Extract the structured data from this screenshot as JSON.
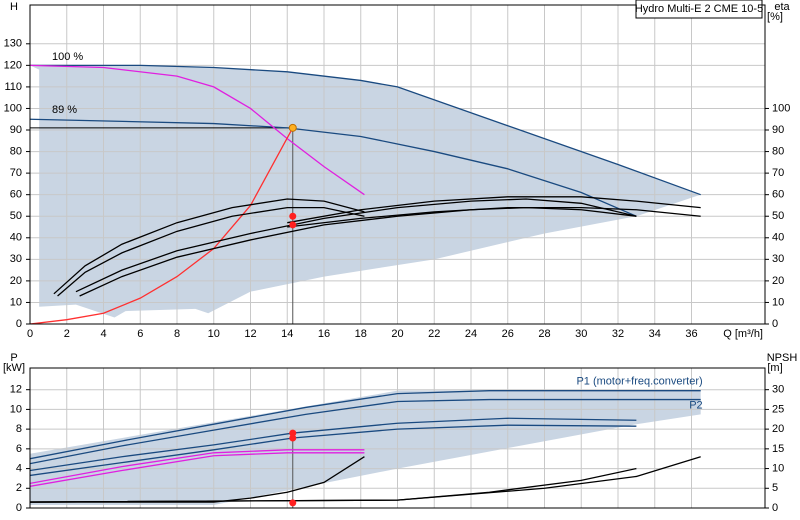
{
  "chart_data": [
    {
      "type": "line",
      "title": "Hydro Multi-E 2 CME 10-5",
      "ylabel": "H",
      "y2label": "eta",
      "y2unit": "[%]",
      "xlabel": "Q [m³/h]",
      "annotations": [
        "100 %",
        "89 %"
      ],
      "xlim": [
        0,
        40
      ],
      "ylim": [
        0,
        148
      ],
      "y2lim": [
        0,
        148
      ],
      "xticks": [
        0,
        2,
        4,
        6,
        8,
        10,
        12,
        14,
        16,
        18,
        20,
        22,
        24,
        26,
        28,
        30,
        32,
        34,
        36
      ],
      "yticks": [
        0,
        10,
        20,
        30,
        40,
        50,
        60,
        70,
        80,
        90,
        100,
        110,
        120,
        130
      ],
      "y2ticks": [
        0,
        10,
        20,
        30,
        40,
        50,
        60,
        70,
        80,
        90,
        100
      ],
      "xtick_labels": true,
      "grid": true,
      "operating_range": {
        "color": "#c9d5e3",
        "x": [
          0,
          6,
          10,
          14,
          18,
          20,
          26,
          32,
          36.5,
          33,
          28,
          22,
          16,
          12,
          9.7,
          9,
          5.2,
          4.6,
          2.5,
          0.5,
          0.5
        ],
        "values": [
          120,
          120,
          119,
          117,
          113,
          110,
          92,
          74,
          60,
          50,
          42,
          30,
          22,
          15,
          5,
          7,
          6,
          3,
          9,
          8,
          118
        ]
      },
      "duty_point": {
        "x": 14.3,
        "value": 91
      },
      "series": [
        {
          "color": "#1a4a80",
          "mark": "line",
          "x": [
            0,
            6,
            10,
            14,
            18,
            20,
            26,
            32,
            36.5
          ],
          "values": [
            120,
            120,
            119,
            117,
            113,
            110,
            92,
            74,
            60
          ]
        },
        {
          "color": "#1a4a80",
          "mark": "line",
          "x": [
            0,
            10,
            14,
            18,
            22,
            26,
            30,
            33
          ],
          "values": [
            95,
            93,
            91,
            87,
            80,
            72,
            61,
            50
          ]
        },
        {
          "color": "#e020e0",
          "mark": "line",
          "x": [
            0,
            4,
            8,
            10,
            12,
            14,
            16,
            18.2
          ],
          "values": [
            120,
            119,
            115,
            110,
            100,
            86,
            73,
            60
          ]
        },
        {
          "color": "#ff3030",
          "mark": "line",
          "x": [
            0,
            2,
            4,
            6,
            8,
            10,
            12,
            14.3
          ],
          "values": [
            0,
            2,
            5,
            12,
            22,
            35,
            55,
            91
          ]
        },
        {
          "color": "#000000",
          "mark": "line",
          "axis": "y2",
          "x": [
            1.3,
            3,
            5,
            8,
            11,
            14,
            16,
            18.2
          ],
          "values": [
            14,
            27,
            37,
            47,
            54,
            58,
            57,
            52
          ]
        },
        {
          "color": "#000000",
          "mark": "line",
          "axis": "y2",
          "x": [
            1.5,
            3,
            5,
            8,
            11,
            14,
            16,
            18.2
          ],
          "values": [
            13,
            24,
            33,
            43,
            50,
            54,
            54,
            50
          ]
        },
        {
          "color": "#000000",
          "mark": "line",
          "axis": "y2",
          "x": [
            2.5,
            5,
            8,
            12,
            16,
            20,
            24,
            27,
            30,
            33
          ],
          "values": [
            15,
            25,
            34,
            42,
            49,
            54,
            57,
            58,
            56,
            50
          ]
        },
        {
          "color": "#000000",
          "mark": "line",
          "axis": "y2",
          "x": [
            2.7,
            5,
            8,
            12,
            16,
            20,
            24,
            27,
            30,
            33
          ],
          "values": [
            13,
            22,
            31,
            39,
            46,
            50,
            53,
            54,
            53,
            50
          ]
        },
        {
          "color": "#000000",
          "mark": "line",
          "axis": "y2",
          "x": [
            14,
            18,
            22,
            26,
            30,
            33,
            36.5
          ],
          "values": [
            47,
            53,
            57,
            59,
            59,
            57,
            54
          ]
        },
        {
          "color": "#000000",
          "mark": "line",
          "axis": "y2",
          "x": [
            14,
            18,
            22,
            26,
            30,
            33,
            36.5
          ],
          "values": [
            45,
            49,
            52,
            54,
            54,
            53,
            50
          ]
        },
        {
          "color": "#ff2020",
          "mark": "dot",
          "axis": "y2",
          "x": [
            14.3,
            14.3
          ],
          "values": [
            50,
            46
          ]
        },
        {
          "color": "#ffb020",
          "mark": "dot",
          "x": [
            14.3
          ],
          "values": [
            91
          ]
        }
      ]
    },
    {
      "type": "line",
      "ylabel": "P",
      "yunit": "[kW]",
      "y2label": "NPSH",
      "y2unit": "[m]",
      "xlim": [
        0,
        40
      ],
      "ylim": [
        0,
        14.2
      ],
      "y2lim": [
        0,
        35.5
      ],
      "xticks": [
        0,
        2,
        4,
        6,
        8,
        10,
        12,
        14,
        16,
        18,
        20,
        22,
        24,
        26,
        28,
        30,
        32,
        34,
        36
      ],
      "yticks": [
        0,
        2,
        4,
        6,
        8,
        10,
        12
      ],
      "y2ticks": [
        0,
        5,
        10,
        15,
        20,
        25,
        30
      ],
      "xtick_labels": false,
      "grid": true,
      "operating_range": {
        "color": "#c9d5e3",
        "x": [
          0,
          20,
          36.5,
          36.5,
          33,
          20,
          10,
          0
        ],
        "values": [
          5.5,
          11.9,
          12,
          9.5,
          8.5,
          4,
          0.3,
          0.3
        ]
      },
      "duty_point": {
        "x": 14.3,
        "value": 7.6
      },
      "series": [
        {
          "name": "P1 (motor+freq.converter)",
          "color": "#1a4a80",
          "mark": "line",
          "x": [
            0,
            5,
            10,
            15,
            20,
            25,
            36.5
          ],
          "values": [
            5,
            6.8,
            8.5,
            10.2,
            11.6,
            11.9,
            11.9
          ]
        },
        {
          "name": "P2",
          "color": "#1a4a80",
          "mark": "line",
          "x": [
            0,
            5,
            10,
            15,
            20,
            25,
            36.5
          ],
          "values": [
            4.5,
            6.3,
            7.9,
            9.5,
            10.8,
            11,
            11
          ]
        },
        {
          "color": "#1a4a80",
          "mark": "line",
          "x": [
            0,
            5,
            10,
            14.3,
            20,
            26,
            33
          ],
          "values": [
            3.8,
            5.2,
            6.4,
            7.6,
            8.6,
            9.1,
            8.9
          ]
        },
        {
          "color": "#1a4a80",
          "mark": "line",
          "x": [
            0,
            5,
            10,
            14.3,
            20,
            26,
            33
          ],
          "values": [
            3.3,
            4.6,
            5.9,
            7.1,
            8,
            8.4,
            8.3
          ]
        },
        {
          "color": "#e020e0",
          "mark": "line",
          "x": [
            0,
            5,
            10,
            14,
            18.2
          ],
          "values": [
            2.5,
            4.2,
            5.6,
            5.9,
            5.9
          ]
        },
        {
          "color": "#e020e0",
          "mark": "line",
          "x": [
            0,
            5,
            10,
            14,
            18.2
          ],
          "values": [
            2.2,
            3.8,
            5.3,
            5.6,
            5.6
          ]
        },
        {
          "color": "#000000",
          "mark": "line",
          "axis": "y2",
          "x": [
            0,
            10,
            12,
            14,
            16,
            18.2
          ],
          "values": [
            1.5,
            1.5,
            2.5,
            4,
            6.5,
            13
          ]
        },
        {
          "color": "#000000",
          "mark": "line",
          "axis": "y2",
          "x": [
            0,
            20,
            25,
            30,
            33
          ],
          "values": [
            1.5,
            2,
            4,
            7,
            10
          ]
        },
        {
          "color": "#000000",
          "mark": "line",
          "axis": "y2",
          "x": [
            0,
            20,
            28,
            33,
            36.5
          ],
          "values": [
            1.5,
            2,
            5,
            8,
            13
          ]
        },
        {
          "color": "#ff2020",
          "mark": "dot",
          "x": [
            14.3,
            14.3
          ],
          "values": [
            7.6,
            7.1
          ]
        },
        {
          "color": "#ff2020",
          "mark": "dot",
          "axis": "y2",
          "x": [
            14.3
          ],
          "values": [
            1.3
          ]
        }
      ]
    }
  ]
}
